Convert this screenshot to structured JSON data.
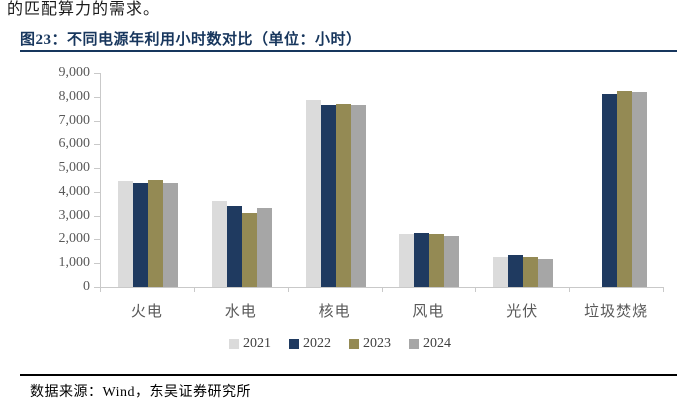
{
  "page": {
    "top_text": "的匹配算力的需求。",
    "figure_title": "图23：不同电源年利用小时数对比（单位：小时）",
    "source_note": "数据来源：Wind，东吴证券研究所"
  },
  "colors": {
    "title_navy": "#17365d",
    "top_rule": "#17365d",
    "bottom_rule": "#000000",
    "axis_line": "#c9c9c9",
    "axis_text": "#595959",
    "series_2021": "#dbdbdb",
    "series_2022": "#1f3a60",
    "series_2023": "#948a54",
    "series_2024": "#a6a6a6"
  },
  "chart_data": {
    "type": "bar",
    "title": "不同电源年利用小时数对比",
    "unit": "小时",
    "xlabel": "",
    "ylabel": "",
    "categories": [
      "火电",
      "水电",
      "核电",
      "风电",
      "光伏",
      "垃圾焚烧"
    ],
    "series": [
      {
        "name": "2021",
        "color": "#dbdbdb",
        "values": [
          4450,
          3620,
          7870,
          2250,
          1250,
          null
        ]
      },
      {
        "name": "2022",
        "color": "#1f3a60",
        "values": [
          4380,
          3400,
          7650,
          2260,
          1350,
          8130
        ]
      },
      {
        "name": "2023",
        "color": "#948a54",
        "values": [
          4500,
          3130,
          7680,
          2250,
          1280,
          8230
        ]
      },
      {
        "name": "2024",
        "color": "#a6a6a6",
        "values": [
          4380,
          3340,
          7660,
          2130,
          1200,
          8210
        ]
      }
    ],
    "ylim": [
      0,
      9000
    ],
    "ytick_step": 1000,
    "ytick_labels": [
      "0",
      "1,000",
      "2,000",
      "3,000",
      "4,000",
      "5,000",
      "6,000",
      "7,000",
      "8,000",
      "9,000"
    ],
    "grid": false,
    "legend_position": "bottom",
    "legend_entries": [
      "2021",
      "2022",
      "2023",
      "2024"
    ]
  }
}
